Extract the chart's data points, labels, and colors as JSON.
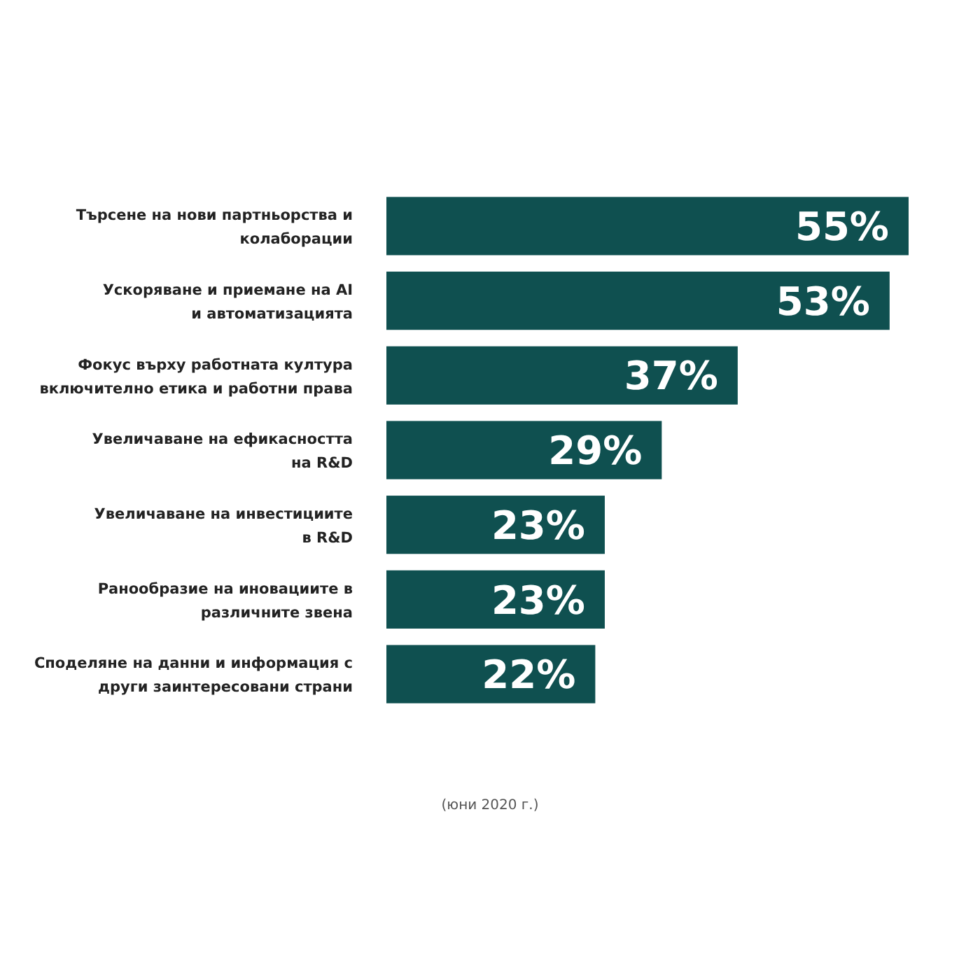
{
  "chart_data": {
    "type": "bar",
    "orientation": "horizontal",
    "categories": [
      "Търсене на нови партньорства и\nколаборации",
      "Ускоряване и приемане на AI\nи автоматизацията",
      "Фокус върху работната култура\nвключително етика и работни права",
      "Увеличаване на ефикасността\nна R&D",
      "Увеличаване на инвестициите\nв R&D",
      "Ранообразие на иновациите в\nразличните звена",
      "Споделяне на данни и информация с\nдруги заинтересовани страни"
    ],
    "values": [
      55,
      53,
      37,
      29,
      23,
      23,
      22
    ],
    "value_labels": [
      "55%",
      "53%",
      "37%",
      "29%",
      "23%",
      "23%",
      "22%"
    ],
    "color": "#0f5050",
    "xlim": [
      0,
      55
    ],
    "annotations": [
      "(юни 2020 г.)"
    ]
  }
}
